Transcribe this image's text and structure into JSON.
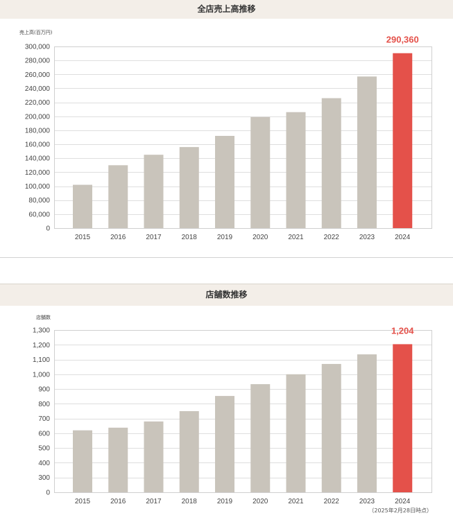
{
  "colors": {
    "bar": "#c9c4bb",
    "highlight": "#e4514a",
    "header_background": "#f3eee8",
    "gridline": "#dedede",
    "text": "#333333"
  },
  "chart_data": [
    {
      "type": "bar",
      "title": "全店売上高推移",
      "ylabel": "売上高(百万円)",
      "categories": [
        "2015",
        "2016",
        "2017",
        "2018",
        "2019",
        "2020",
        "2021",
        "2022",
        "2023",
        "2024"
      ],
      "values": [
        102000,
        130000,
        145000,
        156000,
        172000,
        199000,
        206000,
        226000,
        257000,
        290360
      ],
      "ylim": [
        0,
        300000
      ],
      "y_ticks": [
        {
          "value": 300000,
          "label": "300,000"
        },
        {
          "value": 280000,
          "label": "280,000"
        },
        {
          "value": 260000,
          "label": "260,000"
        },
        {
          "value": 240000,
          "label": "240,000"
        },
        {
          "value": 220000,
          "label": "220,000"
        },
        {
          "value": 200000,
          "label": "200,000"
        },
        {
          "value": 180000,
          "label": "180,000"
        },
        {
          "value": 160000,
          "label": "160,000"
        },
        {
          "value": 140000,
          "label": "140,000"
        },
        {
          "value": 120000,
          "label": "120,000"
        },
        {
          "value": 100000,
          "label": "100,000"
        },
        {
          "value": 80000,
          "label": "80,000"
        },
        {
          "value": 60000,
          "label": "60,000"
        },
        {
          "value": 0,
          "label": "0"
        }
      ],
      "highlight_index": 9,
      "data_labels": [
        {
          "index": 9,
          "label": "290,360"
        }
      ],
      "grid": true
    },
    {
      "type": "bar",
      "title": "店舗数推移",
      "ylabel": "店舗数",
      "categories": [
        "2015",
        "2016",
        "2017",
        "2018",
        "2019",
        "2020",
        "2021",
        "2022",
        "2023",
        "2024"
      ],
      "values": [
        620,
        638,
        680,
        750,
        853,
        933,
        1000,
        1070,
        1135,
        1204
      ],
      "ylim": [
        0,
        1300
      ],
      "y_ticks": [
        {
          "value": 1300,
          "label": "1,300"
        },
        {
          "value": 1200,
          "label": "1,200"
        },
        {
          "value": 1100,
          "label": "1,100"
        },
        {
          "value": 1000,
          "label": "1,000"
        },
        {
          "value": 900,
          "label": "900"
        },
        {
          "value": 800,
          "label": "800"
        },
        {
          "value": 700,
          "label": "700"
        },
        {
          "value": 600,
          "label": "600"
        },
        {
          "value": 500,
          "label": "500"
        },
        {
          "value": 400,
          "label": "400"
        },
        {
          "value": 300,
          "label": "300"
        },
        {
          "value": 0,
          "label": "0"
        }
      ],
      "highlight_index": 9,
      "data_labels": [
        {
          "index": 9,
          "label": "1,204"
        }
      ],
      "note": "（2025年2月28日時点）",
      "grid": true
    }
  ]
}
